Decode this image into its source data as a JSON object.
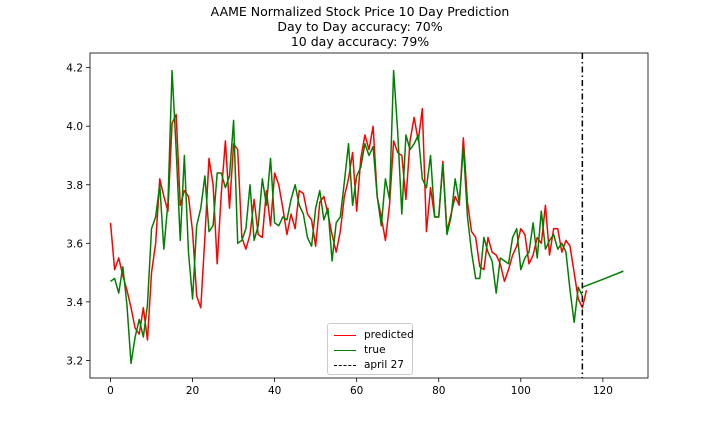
{
  "chart_data": {
    "type": "line",
    "title": [
      "AAME Normalized Stock Price 10 Day Prediction",
      "Day to Day accuracy: 70%",
      "10 day accuracy: 79%"
    ],
    "xlabel": "",
    "ylabel": "",
    "xlim": [
      -5,
      131
    ],
    "ylim": [
      3.14,
      4.25
    ],
    "x_ticks": [
      0,
      20,
      40,
      60,
      80,
      100,
      120
    ],
    "y_ticks": [
      3.2,
      3.4,
      3.6,
      3.8,
      4.0,
      4.2
    ],
    "x_tick_labels": [
      "0",
      "20",
      "40",
      "60",
      "80",
      "100",
      "120"
    ],
    "y_tick_labels": [
      "3.2",
      "3.4",
      "3.6",
      "3.8",
      "4.0",
      "4.2"
    ],
    "grid": false,
    "legend": "lower center",
    "series": [
      {
        "name": "predicted",
        "color": "#ff0000",
        "style": "solid",
        "x_start": 0,
        "values": [
          3.67,
          3.51,
          3.55,
          3.49,
          3.44,
          3.38,
          3.31,
          3.29,
          3.38,
          3.27,
          3.5,
          3.6,
          3.82,
          3.76,
          3.71,
          4.01,
          4.04,
          3.73,
          3.78,
          3.76,
          3.64,
          3.42,
          3.38,
          3.62,
          3.89,
          3.8,
          3.53,
          3.77,
          3.95,
          3.72,
          3.94,
          3.92,
          3.62,
          3.58,
          3.63,
          3.75,
          3.63,
          3.62,
          3.78,
          3.66,
          3.84,
          3.8,
          3.72,
          3.63,
          3.7,
          3.65,
          3.78,
          3.77,
          3.7,
          3.68,
          3.59,
          3.74,
          3.76,
          3.7,
          3.63,
          3.57,
          3.64,
          3.76,
          3.82,
          3.91,
          3.71,
          3.89,
          3.97,
          3.92,
          4.0,
          3.76,
          3.69,
          3.61,
          3.73,
          3.95,
          3.91,
          3.9,
          3.75,
          3.95,
          4.03,
          3.95,
          4.06,
          3.64,
          3.79,
          3.69,
          3.69,
          3.88,
          3.64,
          3.7,
          3.76,
          3.73,
          3.96,
          3.74,
          3.64,
          3.62,
          3.52,
          3.51,
          3.62,
          3.57,
          3.56,
          3.53,
          3.47,
          3.51,
          3.56,
          3.59,
          3.65,
          3.63,
          3.53,
          3.56,
          3.62,
          3.6,
          3.73,
          3.56,
          3.65,
          3.65,
          3.57,
          3.61,
          3.59,
          3.5,
          3.41,
          3.38,
          3.44
        ]
      },
      {
        "name": "true",
        "color": "#008000",
        "style": "solid",
        "x_start": 0,
        "values": [
          3.47,
          3.48,
          3.43,
          3.52,
          3.39,
          3.19,
          3.28,
          3.34,
          3.28,
          3.39,
          3.65,
          3.69,
          3.8,
          3.58,
          3.74,
          4.19,
          3.92,
          3.61,
          3.9,
          3.57,
          3.41,
          3.66,
          3.72,
          3.83,
          3.64,
          3.66,
          3.84,
          3.84,
          3.79,
          3.83,
          4.02,
          3.6,
          3.61,
          3.65,
          3.8,
          3.61,
          3.66,
          3.82,
          3.73,
          3.89,
          3.67,
          3.66,
          3.69,
          3.68,
          3.75,
          3.8,
          3.73,
          3.7,
          3.62,
          3.59,
          3.72,
          3.78,
          3.68,
          3.72,
          3.54,
          3.67,
          3.69,
          3.81,
          3.94,
          3.73,
          3.83,
          3.86,
          3.94,
          3.9,
          3.93,
          3.76,
          3.66,
          3.82,
          3.75,
          4.19,
          3.98,
          3.7,
          3.97,
          3.92,
          3.94,
          3.97,
          3.82,
          3.79,
          3.9,
          3.69,
          3.69,
          3.87,
          3.63,
          3.69,
          3.82,
          3.74,
          3.93,
          3.69,
          3.57,
          3.48,
          3.48,
          3.62,
          3.57,
          3.54,
          3.43,
          3.55,
          3.54,
          3.53,
          3.62,
          3.65,
          3.51,
          3.55,
          3.57,
          3.67,
          3.55,
          3.71,
          3.58,
          3.61,
          3.63,
          3.58,
          3.6,
          3.57,
          3.44,
          3.33,
          3.45,
          3.42
        ]
      },
      {
        "name": "",
        "color": "#008000",
        "style": "solid",
        "x": [
          115,
          120,
          125
        ],
        "values": [
          3.45,
          3.477,
          3.505
        ]
      }
    ],
    "vlines": [
      {
        "name": "april 27",
        "x": 115,
        "color": "#000000",
        "style": "dashdot"
      }
    ]
  }
}
